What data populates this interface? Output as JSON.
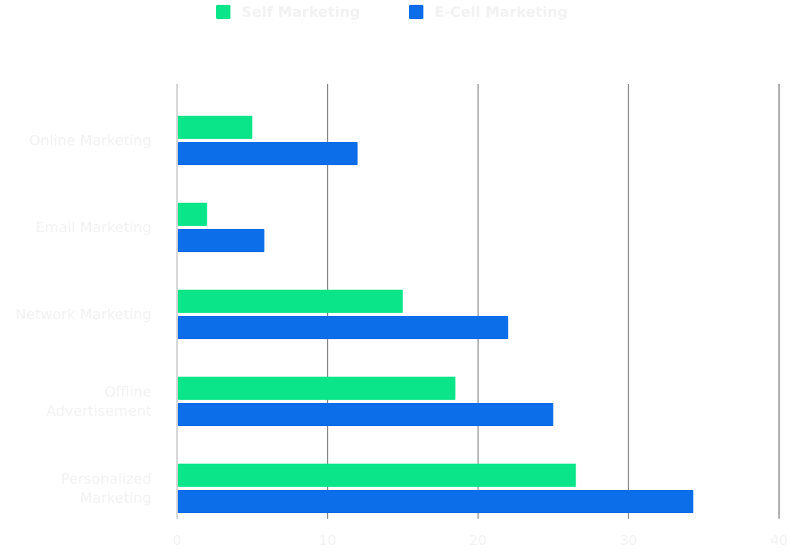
{
  "chart_data": {
    "type": "bar",
    "orientation": "horizontal",
    "categories": [
      [
        "Online Marketing"
      ],
      [
        "Email Marketing"
      ],
      [
        "Network Marketing"
      ],
      [
        "Offline",
        "Advertisement"
      ],
      [
        "Personalized",
        "Marketing"
      ]
    ],
    "series": [
      {
        "name": "Self Marketing",
        "color": "#0be58a",
        "values": [
          5,
          2,
          15,
          18.5,
          26.5
        ]
      },
      {
        "name": "E-Cell Marketing",
        "color": "#0d6ee9",
        "values": [
          12,
          5.8,
          22,
          25,
          34.3
        ]
      }
    ],
    "xlim": [
      0,
      40
    ],
    "xticks": [
      "0",
      "10",
      "20",
      "30",
      "40"
    ],
    "grid": true,
    "legend_position": "top-center",
    "colors": {
      "grid": "#555555",
      "text": "#f2f2f2"
    }
  }
}
